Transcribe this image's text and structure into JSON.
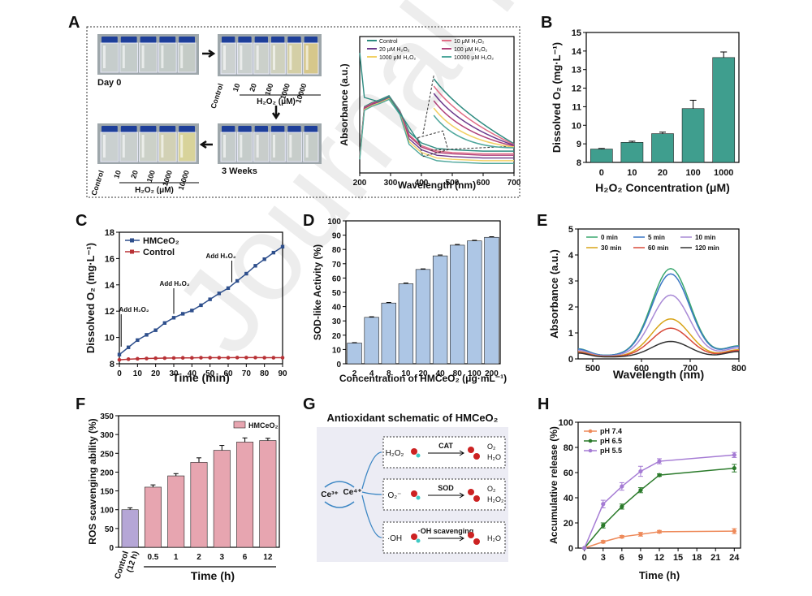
{
  "watermark": "Journal Pre-proofs",
  "colors": {
    "teal": "#3f9e8e",
    "steel": "#2e4f8c",
    "red": "#b83236",
    "blue_bar": "#adc6e5",
    "pink_bar": "#e7a5b0",
    "lav_bar": "#b5a6d6",
    "orange": "#ee8a5a",
    "green": "#2a7a2a",
    "purple": "#a57bd4"
  },
  "panels": {
    "A": {
      "letter": "A",
      "day0": "Day 0",
      "weeks": "3 Weeks",
      "tick_labels": [
        "Control",
        "10",
        "20",
        "100",
        "1000",
        "10000"
      ],
      "unit_label": "H₂O₂ (μM)",
      "vial_colors_day0": [
        "#c9d0ce",
        "#c7cfcc",
        "#c8cecc",
        "#c6cdca",
        "#c7cdc8"
      ],
      "vial_colors_top": [
        "#cfd4d2",
        "#cdd3d0",
        "#ced3cc",
        "#d2d4c0",
        "#d7d2a6",
        "#d9c98a"
      ],
      "vial_colors_bottom": [
        "#cdd3d2",
        "#ccd2cf",
        "#cfd4ca",
        "#d5d4b6",
        "#dcd69a"
      ],
      "vial_colors_mid": [
        "#c8cfcd",
        "#c8cfcc",
        "#cbd0cd",
        "#c9cfcb",
        "#cad0cc",
        "#c8ceca"
      ]
    },
    "A_spec": {
      "type": "line",
      "xlabel": "Wavelength (nm)",
      "ylabel": "Absorbance (a.u.)",
      "xlim": [
        200,
        700
      ],
      "xticks": [
        200,
        300,
        400,
        500,
        600,
        700
      ],
      "series": [
        {
          "name": "Control",
          "color": "#2e8b80"
        },
        {
          "name": "10 μM H₂O₂",
          "color": "#e06d86"
        },
        {
          "name": "20 μM H₂O₂",
          "color": "#6c3a8c"
        },
        {
          "name": "100 μM H₂O₂",
          "color": "#b0407a"
        },
        {
          "name": "1000 μM H₂O₂",
          "color": "#f2d064"
        },
        {
          "name": "10000 μM H₂O₂",
          "color": "#4fa79c"
        }
      ]
    },
    "B": {
      "letter": "B",
      "type": "bar",
      "xlabel": "H₂O₂ Concentration (μM)",
      "ylabel": "Dissolved O₂ (mg·L⁻¹)",
      "categories": [
        "0",
        "10",
        "20",
        "100",
        "1000"
      ],
      "values": [
        8.72,
        9.08,
        9.55,
        10.9,
        13.65
      ],
      "errors": [
        0.03,
        0.06,
        0.08,
        0.45,
        0.3
      ],
      "ylim": [
        8,
        15
      ],
      "yticks": [
        8,
        9,
        10,
        11,
        12,
        13,
        14,
        15
      ]
    },
    "C": {
      "letter": "C",
      "type": "line",
      "xlabel": "Time (min)",
      "ylabel": "Dissolved O₂ (mg·L⁻¹)",
      "xlim": [
        0,
        90
      ],
      "ylim": [
        8,
        18
      ],
      "xticks": [
        0,
        10,
        20,
        30,
        40,
        50,
        60,
        70,
        80,
        90
      ],
      "yticks": [
        8,
        10,
        12,
        14,
        16,
        18
      ],
      "series": [
        {
          "name": "HMCeO₂",
          "color": "#2e4f8c",
          "x": [
            0,
            5,
            10,
            15,
            20,
            25,
            30,
            35,
            40,
            45,
            50,
            55,
            60,
            65,
            70,
            75,
            80,
            85,
            90
          ],
          "y": [
            8.7,
            9.25,
            9.8,
            10.2,
            10.55,
            11.1,
            11.5,
            11.8,
            12.05,
            12.45,
            12.9,
            13.35,
            13.75,
            14.3,
            14.85,
            15.45,
            15.95,
            16.45,
            16.9
          ]
        },
        {
          "name": "Control",
          "color": "#b83236",
          "x": [
            0,
            5,
            10,
            15,
            20,
            25,
            30,
            35,
            40,
            45,
            50,
            55,
            60,
            65,
            70,
            75,
            80,
            85,
            90
          ],
          "y": [
            8.3,
            8.35,
            8.38,
            8.4,
            8.42,
            8.43,
            8.44,
            8.45,
            8.45,
            8.46,
            8.46,
            8.46,
            8.46,
            8.47,
            8.47,
            8.47,
            8.46,
            8.46,
            8.46
          ]
        }
      ],
      "annotations": [
        {
          "text": "Add H₂O₂",
          "x": 1
        },
        {
          "text": "Add H₂O₂",
          "x": 30
        },
        {
          "text": "Add H₂O₂",
          "x": 62
        }
      ]
    },
    "D": {
      "letter": "D",
      "type": "bar",
      "xlabel": "Concentration of HMCeO₂ (μg·mL⁻¹)",
      "ylabel": "SOD-like Activity (%)",
      "categories": [
        "2",
        "4",
        "8",
        "10",
        "20",
        "40",
        "80",
        "100",
        "200"
      ],
      "values": [
        14.5,
        32.5,
        42.5,
        56,
        66,
        75.5,
        83,
        86,
        88.5
      ],
      "errors": [
        0.3,
        0.4,
        0.4,
        0.5,
        0.4,
        0.6,
        0.5,
        0.4,
        0.4
      ],
      "ylim": [
        0,
        100
      ],
      "yticks": [
        0,
        10,
        20,
        30,
        40,
        50,
        60,
        70,
        80,
        90,
        100
      ]
    },
    "E": {
      "letter": "E",
      "type": "line",
      "xlabel": "Wavelength (nm)",
      "ylabel": "Absorbance (a.u.)",
      "xlim": [
        470,
        800
      ],
      "ylim": [
        0,
        5
      ],
      "xticks": [
        500,
        600,
        700,
        800
      ],
      "yticks": [
        0,
        1,
        2,
        3,
        4,
        5
      ],
      "series": [
        {
          "name": "0 min",
          "color": "#3aa86f",
          "peak": 3.35
        },
        {
          "name": "5 min",
          "color": "#3a77c4",
          "peak": 3.15
        },
        {
          "name": "10 min",
          "color": "#a98ad6",
          "peak": 2.35
        },
        {
          "name": "30 min",
          "color": "#d8a418",
          "peak": 1.45
        },
        {
          "name": "60 min",
          "color": "#d84a3a",
          "peak": 1.1
        },
        {
          "name": "120 min",
          "color": "#333333",
          "peak": 0.6
        }
      ]
    },
    "F": {
      "letter": "F",
      "type": "bar",
      "xlabel": "Time (h)",
      "ylabel": "ROS scavenging ability (%)",
      "legend": "HMCeO₂",
      "control_label": "Control",
      "control_sub": "(12 h)",
      "categories": [
        "0.5",
        "1",
        "2",
        "3",
        "6",
        "12"
      ],
      "values": [
        160,
        190,
        226,
        258,
        280,
        284
      ],
      "errors": [
        6,
        6,
        12,
        13,
        11,
        6
      ],
      "control_value": 100,
      "control_error": 5,
      "ylim": [
        0,
        350
      ],
      "yticks": [
        0,
        50,
        100,
        150,
        200,
        250,
        300,
        350
      ]
    },
    "G": {
      "letter": "G",
      "title": "Antioxidant schematic of HMCeO₂",
      "ce3": "Ce³⁺",
      "ce4": "Ce⁴⁺",
      "rows": [
        {
          "reactant": "H₂O₂",
          "enzyme": "CAT",
          "products": [
            "O₂",
            "H₂O"
          ]
        },
        {
          "reactant": "O₂⁻",
          "enzyme": "SOD",
          "products": [
            "O₂",
            "H₂O₂"
          ]
        },
        {
          "reactant": "·OH",
          "enzyme": "·OH scavenging",
          "products": [
            "H₂O"
          ]
        }
      ]
    },
    "H": {
      "letter": "H",
      "type": "line",
      "xlabel": "Time (h)",
      "ylabel": "Accumulative release (%)",
      "xlim": [
        0,
        24
      ],
      "ylim": [
        0,
        100
      ],
      "xticks": [
        0,
        3,
        6,
        9,
        12,
        15,
        18,
        21,
        24
      ],
      "yticks": [
        0,
        20,
        40,
        60,
        80,
        100
      ],
      "series": [
        {
          "name": "pH 7.4",
          "color": "#ee8a5a",
          "x": [
            0,
            3,
            6,
            9,
            12,
            24
          ],
          "y": [
            0,
            5,
            9,
            11,
            13,
            13.5
          ],
          "err": [
            0,
            1,
            1,
            1.5,
            1,
            2
          ]
        },
        {
          "name": "pH 6.5",
          "color": "#2a7a2a",
          "x": [
            0,
            3,
            6,
            9,
            12,
            24
          ],
          "y": [
            0,
            18,
            33,
            46,
            58,
            63.5
          ],
          "err": [
            0,
            2,
            2,
            2,
            1,
            3
          ]
        },
        {
          "name": "pH 5.5",
          "color": "#a57bd4",
          "x": [
            0,
            3,
            6,
            9,
            12,
            24
          ],
          "y": [
            0,
            35,
            49,
            61,
            69,
            74
          ],
          "err": [
            0,
            3,
            3,
            4,
            2,
            2
          ]
        }
      ]
    }
  }
}
